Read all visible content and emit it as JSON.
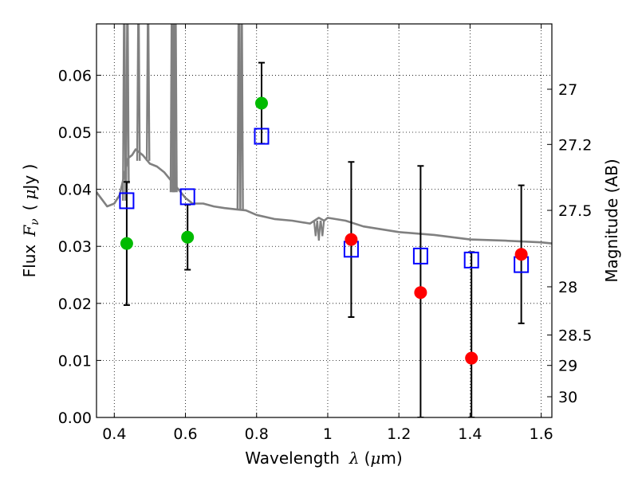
{
  "chart_data": {
    "type": "scatter",
    "xlabel": "Wavelength  λ (μm)",
    "xlabel_parts": [
      "Wavelength",
      "λ",
      "(",
      "μ",
      "m)"
    ],
    "ylabel": "Flux  Fν  ( μJy )",
    "ylabel_parts": [
      "Flux",
      "F",
      "ν",
      "(",
      "μ",
      "Jy )"
    ],
    "y2label": "Magnitude (AB)",
    "xlim": [
      0.35,
      1.63
    ],
    "ylim": [
      0.0,
      0.069
    ],
    "grid": true,
    "x_ticks": [
      {
        "value": 0.4,
        "label": "0.4"
      },
      {
        "value": 0.6,
        "label": "0.6"
      },
      {
        "value": 0.8,
        "label": "0.8"
      },
      {
        "value": 1.0,
        "label": "1"
      },
      {
        "value": 1.2,
        "label": "1.2"
      },
      {
        "value": 1.4,
        "label": "1.4"
      },
      {
        "value": 1.6,
        "label": "1.6"
      }
    ],
    "y_ticks": [
      {
        "value": 0.0,
        "label": "0.00"
      },
      {
        "value": 0.01,
        "label": "0.01"
      },
      {
        "value": 0.02,
        "label": "0.02"
      },
      {
        "value": 0.03,
        "label": "0.03"
      },
      {
        "value": 0.04,
        "label": "0.04"
      },
      {
        "value": 0.05,
        "label": "0.05"
      },
      {
        "value": 0.06,
        "label": "0.06"
      }
    ],
    "mag_ticks": [
      {
        "mag": 27,
        "label": "27"
      },
      {
        "mag": 27.2,
        "label": "27.2"
      },
      {
        "mag": 27.5,
        "label": "27.5"
      },
      {
        "mag": 28,
        "label": "28"
      },
      {
        "mag": 28.5,
        "label": "28.5"
      },
      {
        "mag": 29,
        "label": "29"
      },
      {
        "mag": 30,
        "label": "30"
      }
    ],
    "photometry": [
      {
        "x": 0.435,
        "y": 0.0305,
        "err_lo": 0.0108,
        "err_hi": 0.0108,
        "color": "#00bb00",
        "model": 0.038
      },
      {
        "x": 0.606,
        "y": 0.0316,
        "err_lo": 0.0057,
        "err_hi": 0.0057,
        "color": "#00bb00",
        "model": 0.0387
      },
      {
        "x": 0.814,
        "y": 0.0551,
        "err_lo": 0.0071,
        "err_hi": 0.0071,
        "color": "#00bb00",
        "model": 0.0493
      },
      {
        "x": 1.066,
        "y": 0.0312,
        "err_lo": 0.0136,
        "err_hi": 0.0136,
        "color": "#ff0000",
        "model": 0.0295
      },
      {
        "x": 1.261,
        "y": 0.0219,
        "err_lo": 0.0219,
        "err_hi": 0.0222,
        "color": "#ff0000",
        "model": 0.0283
      },
      {
        "x": 1.404,
        "y": 0.0104,
        "err_lo": 0.0104,
        "err_hi": 0.0186,
        "color": "#ff0000",
        "model": 0.0276
      },
      {
        "x": 1.544,
        "y": 0.0286,
        "err_lo": 0.0121,
        "err_hi": 0.0121,
        "color": "#ff0000",
        "model": 0.0268
      }
    ],
    "model_spectrum": {
      "color": "#808080",
      "x": [
        0.35,
        0.38,
        0.4,
        0.415,
        0.43,
        0.44,
        0.45,
        0.46,
        0.47,
        0.48,
        0.5,
        0.52,
        0.54,
        0.56,
        0.58,
        0.6,
        0.62,
        0.65,
        0.68,
        0.71,
        0.74,
        0.77,
        0.8,
        0.85,
        0.9,
        0.95,
        0.975,
        0.99,
        1.0,
        1.05,
        1.1,
        1.2,
        1.3,
        1.4,
        1.5,
        1.6,
        1.63
      ],
      "y": [
        0.0395,
        0.037,
        0.0375,
        0.039,
        0.043,
        0.0455,
        0.046,
        0.047,
        0.0465,
        0.046,
        0.0445,
        0.044,
        0.043,
        0.0415,
        0.04,
        0.0385,
        0.0375,
        0.0375,
        0.037,
        0.0367,
        0.0365,
        0.0363,
        0.0355,
        0.0348,
        0.0345,
        0.034,
        0.035,
        0.0345,
        0.035,
        0.0345,
        0.0335,
        0.0325,
        0.032,
        0.0312,
        0.031,
        0.0307,
        0.0305
      ]
    },
    "emission_lines": [
      {
        "x": 0.428,
        "peak": 0.069,
        "base": 0.038
      },
      {
        "x": 0.437,
        "peak": 0.069,
        "base": 0.041
      },
      {
        "x": 0.468,
        "peak": 0.069,
        "base": 0.045
      },
      {
        "x": 0.495,
        "peak": 0.069,
        "base": 0.045
      },
      {
        "x": 0.562,
        "peak": 0.069,
        "base": 0.0395
      },
      {
        "x": 0.567,
        "peak": 0.069,
        "base": 0.0395
      },
      {
        "x": 0.572,
        "peak": 0.069,
        "base": 0.0395
      },
      {
        "x": 0.75,
        "peak": 0.069,
        "base": 0.0365
      },
      {
        "x": 0.758,
        "peak": 0.069,
        "base": 0.0365
      }
    ],
    "absorption_lines": [
      {
        "x": 0.966,
        "depth": 0.0318
      },
      {
        "x": 0.975,
        "depth": 0.031
      },
      {
        "x": 0.985,
        "depth": 0.0318
      }
    ]
  }
}
